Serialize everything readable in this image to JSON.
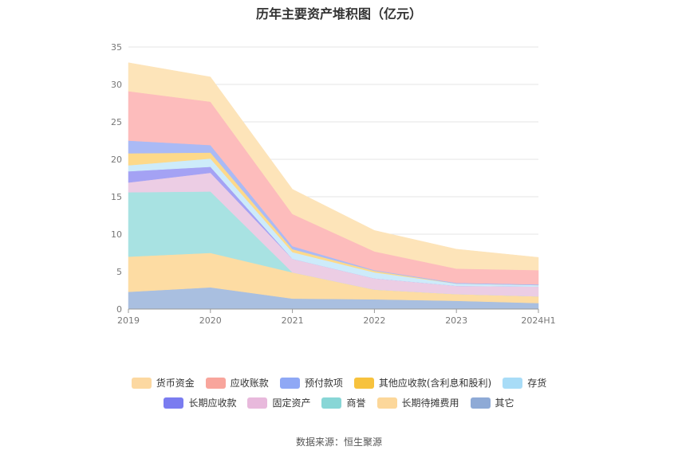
{
  "source_label": "数据来源：恒生聚源",
  "chart_data": {
    "type": "area",
    "title": "历年主要资产堆积图（亿元）",
    "categories": [
      "2019",
      "2020",
      "2021",
      "2022",
      "2023",
      "2024H1"
    ],
    "ylim": [
      0,
      35
    ],
    "yticks": [
      0,
      5,
      10,
      15,
      20,
      25,
      30,
      35
    ],
    "grid": true,
    "legend_position": "bottom",
    "series": [
      {
        "name": "其它",
        "color": "#a9bfe0",
        "values": [
          2.3,
          2.9,
          1.4,
          1.3,
          1.1,
          0.8
        ]
      },
      {
        "name": "长期待摊费用",
        "color": "#fddca3",
        "values": [
          4.7,
          4.6,
          3.5,
          1.3,
          0.9,
          0.9
        ]
      },
      {
        "name": "商誉",
        "color": "#a8e2e2",
        "values": [
          8.6,
          8.2,
          0.0,
          0.0,
          0.0,
          0.0
        ]
      },
      {
        "name": "固定资产",
        "color": "#eccde4",
        "values": [
          1.3,
          2.5,
          1.8,
          1.5,
          1.1,
          1.3
        ]
      },
      {
        "name": "长期应收款",
        "color": "#a4a2f4",
        "values": [
          1.5,
          0.8,
          0.0,
          0.0,
          0.0,
          0.0
        ]
      },
      {
        "name": "存货",
        "color": "#cdebfa",
        "values": [
          0.8,
          1.1,
          0.9,
          0.8,
          0.3,
          0.2
        ]
      },
      {
        "name": "其他应收款(含利息和股利)",
        "color": "#fdd98a",
        "values": [
          1.6,
          0.8,
          0.4,
          0.2,
          0.0,
          0.0
        ]
      },
      {
        "name": "预付款项",
        "color": "#aabaf5",
        "values": [
          1.7,
          1.0,
          0.4,
          0.1,
          0.1,
          0.1
        ]
      },
      {
        "name": "应收账款",
        "color": "#fdbcbc",
        "values": [
          6.6,
          5.8,
          4.3,
          2.5,
          1.9,
          1.9
        ]
      },
      {
        "name": "货币资金",
        "color": "#fde4b9",
        "values": [
          3.8,
          3.3,
          3.3,
          2.8,
          2.6,
          1.7
        ]
      }
    ],
    "legend_rows": [
      [
        {
          "name": "货币资金",
          "color": "#fcd8a1"
        },
        {
          "name": "应收账款",
          "color": "#f8a59c"
        },
        {
          "name": "预付款项",
          "color": "#8fa8f5"
        },
        {
          "name": "其他应收款(含利息和股利)",
          "color": "#f7c23d"
        },
        {
          "name": "存货",
          "color": "#a8dcf7"
        }
      ],
      [
        {
          "name": "长期应收款",
          "color": "#7a7cf0"
        },
        {
          "name": "固定资产",
          "color": "#e8b9dc"
        },
        {
          "name": "商誉",
          "color": "#88d6d6"
        },
        {
          "name": "长期待摊费用",
          "color": "#fcd79a"
        },
        {
          "name": "其它",
          "color": "#8eaad6"
        }
      ]
    ]
  }
}
